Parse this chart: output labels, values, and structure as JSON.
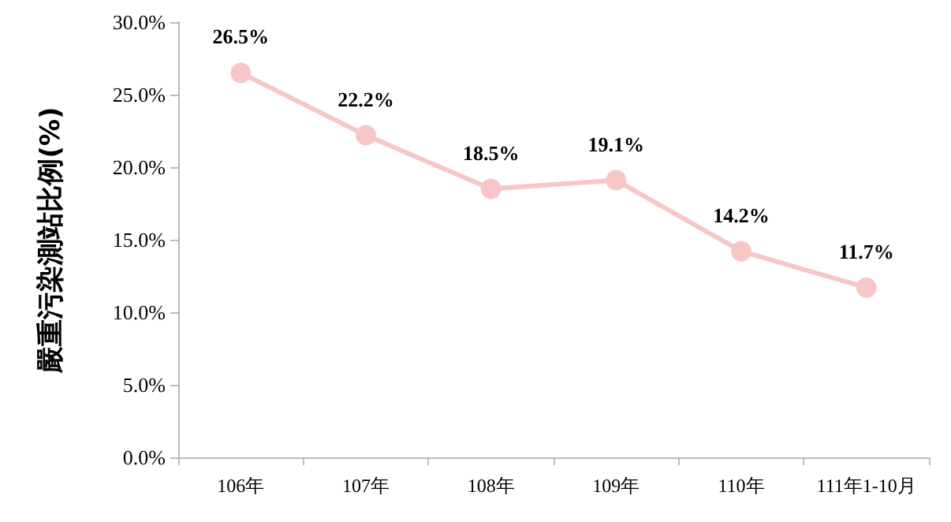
{
  "chart_data": {
    "type": "line",
    "ylabel": "嚴重污染測站比例(%)",
    "categories": [
      "106年",
      "107年",
      "108年",
      "109年",
      "110年",
      "111年1-10月"
    ],
    "series": [
      {
        "color": "#f8c6c6",
        "values": [
          26.5,
          22.2,
          18.5,
          19.1,
          14.2,
          11.7
        ]
      }
    ],
    "value_labels": [
      "26.5%",
      "22.2%",
      "18.5%",
      "19.1%",
      "14.2%",
      "11.7%"
    ],
    "ylim": [
      0,
      30
    ],
    "yticks": [
      {
        "value": 0,
        "label": "0.0%"
      },
      {
        "value": 5,
        "label": "5.0%"
      },
      {
        "value": 10,
        "label": "10.0%"
      },
      {
        "value": 15,
        "label": "15.0%"
      },
      {
        "value": 20,
        "label": "20.0%"
      },
      {
        "value": 25,
        "label": "25.0%"
      },
      {
        "value": 30,
        "label": "30.0%"
      }
    ],
    "grid": false,
    "marker": "circle",
    "line_style": "solid"
  }
}
